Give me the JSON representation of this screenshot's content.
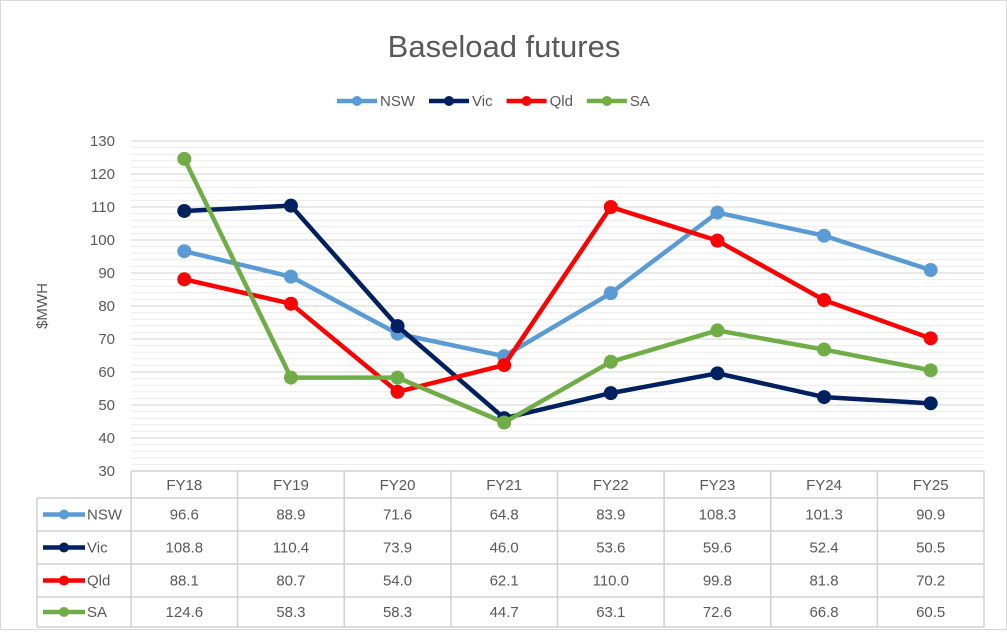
{
  "chart_data": {
    "type": "line",
    "title": "Baseload futures",
    "ylabel": "$MWH",
    "xlabel": "",
    "categories": [
      "FY18",
      "FY19",
      "FY20",
      "FY21",
      "FY22",
      "FY23",
      "FY24",
      "FY25"
    ],
    "ylim": [
      30,
      130
    ],
    "yticks": [
      30,
      40,
      50,
      60,
      70,
      80,
      90,
      100,
      110,
      120,
      130
    ],
    "grid": true,
    "legend": "top",
    "data_table": true,
    "series": [
      {
        "name": "NSW",
        "color": "#5b9bd5",
        "values": [
          96.6,
          88.9,
          71.6,
          64.8,
          83.9,
          108.3,
          101.3,
          90.9
        ]
      },
      {
        "name": "Vic",
        "color": "#002060",
        "values": [
          108.8,
          110.4,
          73.9,
          46.0,
          53.6,
          59.6,
          52.4,
          50.5
        ]
      },
      {
        "name": "Qld",
        "color": "#ff0000",
        "values": [
          88.1,
          80.7,
          54.0,
          62.1,
          110.0,
          99.8,
          81.8,
          70.2
        ]
      },
      {
        "name": "SA",
        "color": "#70ad47",
        "values": [
          124.6,
          58.3,
          58.3,
          44.7,
          63.1,
          72.6,
          66.8,
          60.5
        ]
      }
    ]
  }
}
